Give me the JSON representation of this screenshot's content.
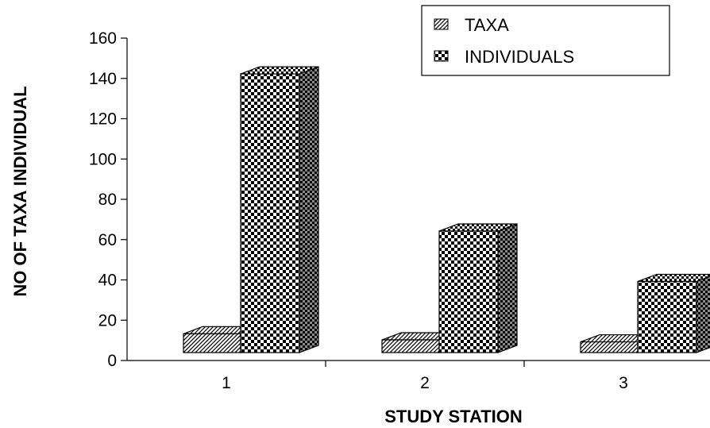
{
  "chart_data": {
    "type": "bar",
    "categories": [
      "1",
      "2",
      "3"
    ],
    "series": [
      {
        "name": "TAXA",
        "values": [
          16,
          13,
          12
        ]
      },
      {
        "name": "INDIVIDUALS",
        "values": [
          145,
          67,
          42
        ]
      }
    ],
    "xlabel": "STUDY STATION",
    "ylabel": "NO OF TAXA INDIVIDUAL",
    "ylim": [
      0,
      160
    ],
    "yticks": [
      "0",
      "20",
      "40",
      "60",
      "80",
      "100",
      "120",
      "140",
      "160"
    ],
    "grid": false,
    "legend_position": "top-right",
    "three_d": true
  }
}
